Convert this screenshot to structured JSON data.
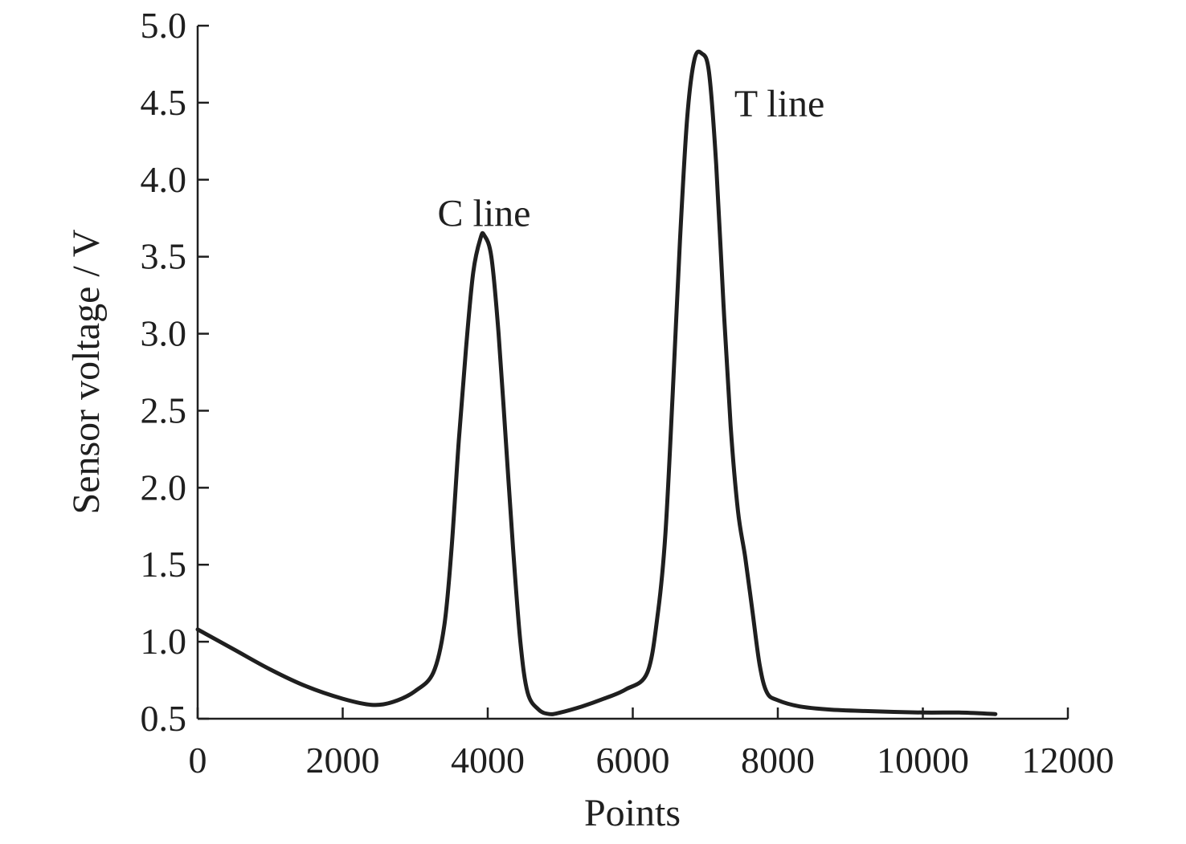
{
  "chart_data": {
    "type": "line",
    "title": "",
    "xlabel": "Points",
    "ylabel": "Sensor voltage / V",
    "xlim": [
      0,
      12000
    ],
    "ylim": [
      0.5,
      5.0
    ],
    "xticks": [
      0,
      2000,
      4000,
      6000,
      8000,
      10000,
      12000
    ],
    "xtick_labels": [
      "0",
      "2000",
      "4000",
      "6000",
      "8000",
      "10000",
      "12000"
    ],
    "yticks": [
      0.5,
      1.0,
      1.5,
      2.0,
      2.5,
      3.0,
      3.5,
      4.0,
      4.5,
      5.0
    ],
    "ytick_labels": [
      "0.5",
      "1.0",
      "1.5",
      "2.0",
      "2.5",
      "3.0",
      "3.5",
      "4.0",
      "4.5",
      "5.0"
    ],
    "grid": false,
    "line_color": "#1f1f1f",
    "annotations": [
      {
        "text": "C line",
        "x": 3950,
        "y": 3.7
      },
      {
        "text": "T line",
        "x": 7400,
        "y": 4.41
      }
    ],
    "series": [
      {
        "x": [
          0,
          500,
          1000,
          1500,
          2000,
          2400,
          2700,
          3000,
          3250,
          3400,
          3500,
          3600,
          3700,
          3800,
          3900,
          3950,
          4050,
          4150,
          4250,
          4350,
          4450,
          4550,
          4700,
          4850,
          5000,
          5300,
          5600,
          5900,
          6200,
          6350,
          6450,
          6550,
          6650,
          6750,
          6850,
          6950,
          7050,
          7150,
          7250,
          7350,
          7450,
          7550,
          7650,
          7750,
          7850,
          8000,
          8300,
          8700,
          9200,
          10000,
          10500,
          11000
        ],
        "y": [
          1.08,
          0.95,
          0.82,
          0.71,
          0.63,
          0.59,
          0.61,
          0.68,
          0.8,
          1.1,
          1.6,
          2.3,
          2.9,
          3.4,
          3.62,
          3.64,
          3.5,
          3.0,
          2.3,
          1.6,
          1.0,
          0.67,
          0.56,
          0.53,
          0.54,
          0.58,
          0.63,
          0.69,
          0.8,
          1.2,
          1.7,
          2.6,
          3.6,
          4.4,
          4.78,
          4.82,
          4.7,
          4.1,
          3.2,
          2.4,
          1.85,
          1.55,
          1.2,
          0.85,
          0.67,
          0.62,
          0.58,
          0.56,
          0.55,
          0.54,
          0.54,
          0.53
        ]
      }
    ]
  }
}
